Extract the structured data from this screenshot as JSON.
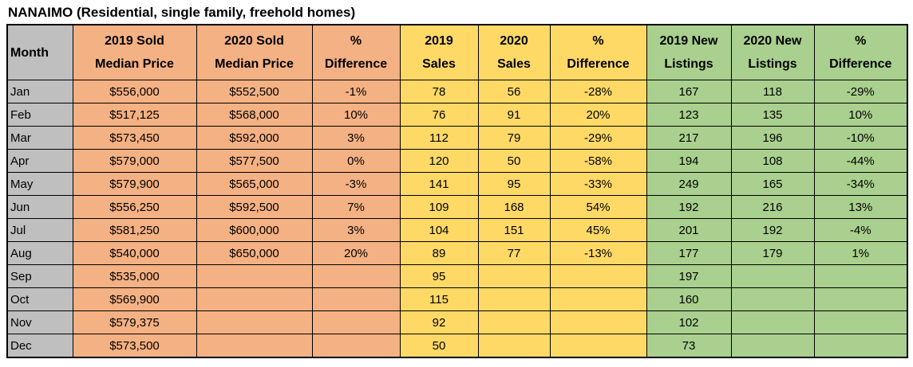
{
  "title": "NANAIMO (Residential, single family, freehold homes)",
  "colors": {
    "month": "#BFBFBF",
    "price": "#F4B183",
    "sales": "#FFD966",
    "listings": "#A9D08E",
    "border": "#000000",
    "text": "#000000"
  },
  "chart_data": {
    "type": "table",
    "title": "NANAIMO (Residential, single family, freehold homes)",
    "column_groups": [
      {
        "id": "month",
        "color": "#BFBFBF"
      },
      {
        "id": "price",
        "color": "#F4B183"
      },
      {
        "id": "sales",
        "color": "#FFD966"
      },
      {
        "id": "listings",
        "color": "#A9D08E"
      }
    ],
    "columns": [
      {
        "id": "month",
        "group": "month",
        "label_lines": [
          "Month"
        ]
      },
      {
        "id": "price2019",
        "group": "price",
        "label_lines": [
          "2019 Sold",
          "Median Price"
        ]
      },
      {
        "id": "price2020",
        "group": "price",
        "label_lines": [
          "2020 Sold",
          "Median Price"
        ]
      },
      {
        "id": "priceDiff",
        "group": "price",
        "label_lines": [
          "%",
          "Difference"
        ]
      },
      {
        "id": "sales2019",
        "group": "sales",
        "label_lines": [
          "2019",
          "Sales"
        ]
      },
      {
        "id": "sales2020",
        "group": "sales",
        "label_lines": [
          "2020",
          "Sales"
        ]
      },
      {
        "id": "salesDiff",
        "group": "sales",
        "label_lines": [
          "%",
          "Difference"
        ]
      },
      {
        "id": "listings2019",
        "group": "listings",
        "label_lines": [
          "2019 New",
          "Listings"
        ]
      },
      {
        "id": "listings2020",
        "group": "listings",
        "label_lines": [
          "2020 New",
          "Listings"
        ]
      },
      {
        "id": "listingsDiff",
        "group": "listings",
        "label_lines": [
          "%",
          "Difference"
        ]
      }
    ],
    "rows": [
      {
        "month": "Jan",
        "price2019": "$556,000",
        "price2020": "$552,500",
        "priceDiff": "-1%",
        "sales2019": "78",
        "sales2020": "56",
        "salesDiff": "-28%",
        "listings2019": "167",
        "listings2020": "118",
        "listingsDiff": "-29%"
      },
      {
        "month": "Feb",
        "price2019": "$517,125",
        "price2020": "$568,000",
        "priceDiff": "10%",
        "sales2019": "76",
        "sales2020": "91",
        "salesDiff": "20%",
        "listings2019": "123",
        "listings2020": "135",
        "listingsDiff": "10%"
      },
      {
        "month": "Mar",
        "price2019": "$573,450",
        "price2020": "$592,000",
        "priceDiff": "3%",
        "sales2019": "112",
        "sales2020": "79",
        "salesDiff": "-29%",
        "listings2019": "217",
        "listings2020": "196",
        "listingsDiff": "-10%"
      },
      {
        "month": "Apr",
        "price2019": "$579,000",
        "price2020": "$577,500",
        "priceDiff": "0%",
        "sales2019": "120",
        "sales2020": "50",
        "salesDiff": "-58%",
        "listings2019": "194",
        "listings2020": "108",
        "listingsDiff": "-44%"
      },
      {
        "month": "May",
        "price2019": "$579,900",
        "price2020": "$565,000",
        "priceDiff": "-3%",
        "sales2019": "141",
        "sales2020": "95",
        "salesDiff": "-33%",
        "listings2019": "249",
        "listings2020": "165",
        "listingsDiff": "-34%"
      },
      {
        "month": "Jun",
        "price2019": "$556,250",
        "price2020": "$592,500",
        "priceDiff": "7%",
        "sales2019": "109",
        "sales2020": "168",
        "salesDiff": "54%",
        "listings2019": "192",
        "listings2020": "216",
        "listingsDiff": "13%"
      },
      {
        "month": "Jul",
        "price2019": "$581,250",
        "price2020": "$600,000",
        "priceDiff": "3%",
        "sales2019": "104",
        "sales2020": "151",
        "salesDiff": "45%",
        "listings2019": "201",
        "listings2020": "192",
        "listingsDiff": "-4%"
      },
      {
        "month": "Aug",
        "price2019": "$540,000",
        "price2020": "$650,000",
        "priceDiff": "20%",
        "sales2019": "89",
        "sales2020": "77",
        "salesDiff": "-13%",
        "listings2019": "177",
        "listings2020": "179",
        "listingsDiff": "1%"
      },
      {
        "month": "Sep",
        "price2019": "$535,000",
        "price2020": "",
        "priceDiff": "",
        "sales2019": "95",
        "sales2020": "",
        "salesDiff": "",
        "listings2019": "197",
        "listings2020": "",
        "listingsDiff": ""
      },
      {
        "month": "Oct",
        "price2019": "$569,900",
        "price2020": "",
        "priceDiff": "",
        "sales2019": "115",
        "sales2020": "",
        "salesDiff": "",
        "listings2019": "160",
        "listings2020": "",
        "listingsDiff": ""
      },
      {
        "month": "Nov",
        "price2019": "$579,375",
        "price2020": "",
        "priceDiff": "",
        "sales2019": "92",
        "sales2020": "",
        "salesDiff": "",
        "listings2019": "102",
        "listings2020": "",
        "listingsDiff": ""
      },
      {
        "month": "Dec",
        "price2019": "$573,500",
        "price2020": "",
        "priceDiff": "",
        "sales2019": "50",
        "sales2020": "",
        "salesDiff": "",
        "listings2019": "73",
        "listings2020": "",
        "listingsDiff": ""
      }
    ]
  }
}
